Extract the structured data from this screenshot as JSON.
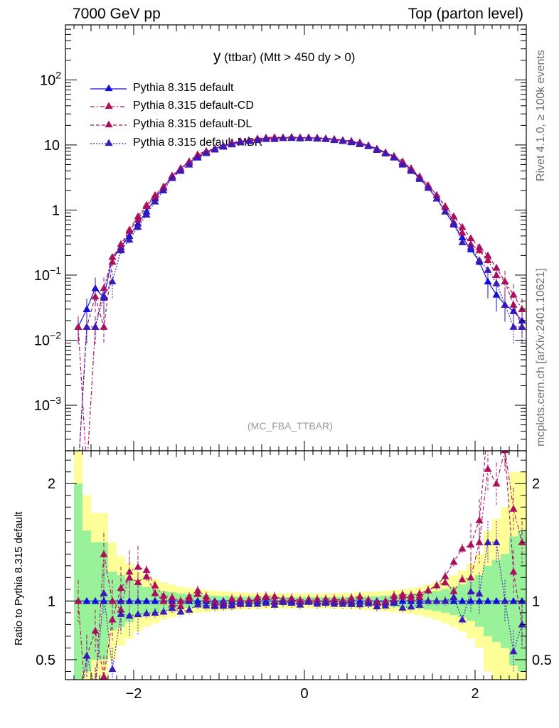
{
  "header": {
    "left": "7000 GeV pp",
    "right": "Top (parton level)"
  },
  "side": {
    "rivet": "Rivet 4.1.0, ≥ 100k events",
    "mcplots": "mcplots.cern.ch [arXiv:2401.10621]"
  },
  "colors": {
    "default": "#1010d8",
    "cd": "#b0105a",
    "dl": "#a8105f",
    "mbr": "#3b1bb8",
    "band_green": "#99f299",
    "band_yellow": "#ffff99"
  },
  "chart_data": {
    "type": "line",
    "title_main": "y",
    "title_rest": "(ttbar) (Mtt > 450 dy > 0)",
    "analysis_tag": "(MC_FBA_TTBAR)",
    "xlim": [
      -2.8,
      2.6
    ],
    "main": {
      "yscale": "log",
      "ylim": [
        0.0002,
        700
      ],
      "yticks": [
        {
          "value": 0.001,
          "label": "10",
          "exp": "−3"
        },
        {
          "value": 0.01,
          "label": "10",
          "exp": "−2"
        },
        {
          "value": 0.1,
          "label": "10",
          "exp": "−1"
        },
        {
          "value": 1,
          "label": "1",
          "exp": ""
        },
        {
          "value": 10,
          "label": "10",
          "exp": ""
        },
        {
          "value": 100,
          "label": "10",
          "exp": "2"
        }
      ]
    },
    "ratio": {
      "ylabel": "Ratio to Pythia 8.315 default",
      "ylim": [
        0.33,
        2.28
      ],
      "yticks": [
        {
          "value": 0.5,
          "label": "0.5"
        },
        {
          "value": 1,
          "label": "1"
        },
        {
          "value": 2,
          "label": "2"
        }
      ]
    },
    "xticks": [
      {
        "value": -2,
        "label": "−2"
      },
      {
        "value": 0,
        "label": "0"
      },
      {
        "value": 2,
        "label": "2"
      }
    ],
    "x": [
      -2.65,
      -2.55,
      -2.45,
      -2.35,
      -2.25,
      -2.15,
      -2.05,
      -1.95,
      -1.85,
      -1.75,
      -1.65,
      -1.55,
      -1.45,
      -1.35,
      -1.25,
      -1.15,
      -1.05,
      -0.95,
      -0.85,
      -0.75,
      -0.65,
      -0.55,
      -0.45,
      -0.35,
      -0.25,
      -0.15,
      -0.05,
      0.05,
      0.15,
      0.25,
      0.35,
      0.45,
      0.55,
      0.65,
      0.75,
      0.85,
      0.95,
      1.05,
      1.15,
      1.25,
      1.35,
      1.45,
      1.55,
      1.65,
      1.75,
      1.85,
      1.95,
      2.05,
      2.15,
      2.25,
      2.35,
      2.45,
      2.55
    ],
    "series": [
      {
        "name": "Pythia 8.315 default",
        "style": "solid",
        "values": [
          0.016,
          0.03,
          0.063,
          0.045,
          0.19,
          0.27,
          0.4,
          0.62,
          0.95,
          1.5,
          2.2,
          3.3,
          4.4,
          5.4,
          6.6,
          7.8,
          8.9,
          9.8,
          10.6,
          11.3,
          11.8,
          12.2,
          12.5,
          12.7,
          12.9,
          13.0,
          13.0,
          12.9,
          12.8,
          12.5,
          12.2,
          11.8,
          11.3,
          10.6,
          9.8,
          8.8,
          7.7,
          6.5,
          5.3,
          4.2,
          3.1,
          2.2,
          1.5,
          0.95,
          0.6,
          0.38,
          0.25,
          0.16,
          0.08,
          0.05,
          0.035,
          0.028,
          0.02
        ]
      },
      {
        "name": "Pythia 8.315 default-CD",
        "style": "dashdot",
        "values": [
          0.016,
          0.0001,
          0.016,
          0.063,
          0.19,
          0.25,
          0.5,
          0.8,
          1.2,
          1.7,
          2.3,
          3.4,
          4.4,
          5.6,
          7.2,
          8.1,
          8.8,
          9.6,
          10.8,
          11.5,
          11.5,
          12.6,
          13.0,
          13.2,
          13.1,
          13.3,
          13.1,
          13.1,
          13.0,
          12.7,
          12.4,
          11.9,
          11.6,
          11.0,
          9.9,
          8.7,
          7.7,
          6.8,
          5.6,
          4.4,
          3.3,
          2.4,
          1.7,
          1.1,
          0.65,
          0.45,
          0.3,
          0.24,
          0.17,
          0.1,
          0.08,
          0.05,
          0.03
        ]
      },
      {
        "name": "Pythia 8.315 default-DL",
        "style": "dashed",
        "values": [
          0.0001,
          0.016,
          0.047,
          0.016,
          0.16,
          0.3,
          0.48,
          0.72,
          1.15,
          1.6,
          2.2,
          3.2,
          4.2,
          5.5,
          7.0,
          7.9,
          8.6,
          9.5,
          10.3,
          11.0,
          11.9,
          12.3,
          12.9,
          12.6,
          12.8,
          13.2,
          12.9,
          13.0,
          12.7,
          12.4,
          12.1,
          11.7,
          11.1,
          10.3,
          9.6,
          8.4,
          7.6,
          6.6,
          5.5,
          4.3,
          3.2,
          2.4,
          1.7,
          1.15,
          0.8,
          0.55,
          0.37,
          0.27,
          0.2,
          0.13,
          0.08,
          0.035,
          0.016
        ]
      },
      {
        "name": "Pythia 8.315 default-MBR",
        "style": "dotted",
        "values": [
          0.0001,
          0.016,
          0.016,
          0.048,
          0.08,
          0.24,
          0.35,
          0.55,
          0.85,
          1.35,
          2.0,
          3.1,
          4.0,
          5.0,
          6.4,
          7.5,
          8.5,
          9.4,
          10.2,
          11.1,
          11.5,
          11.9,
          12.3,
          12.3,
          12.8,
          12.8,
          12.6,
          12.8,
          12.5,
          12.3,
          11.9,
          11.5,
          11.0,
          10.3,
          9.6,
          8.4,
          7.4,
          6.4,
          5.0,
          4.0,
          3.0,
          2.2,
          1.5,
          0.95,
          0.62,
          0.32,
          0.27,
          0.17,
          0.12,
          0.075,
          0.035,
          0.016,
          0.016
        ]
      }
    ],
    "band_inner_halfwidth": [
      1.0,
      0.6,
      0.5,
      0.5,
      0.25,
      0.22,
      0.18,
      0.14,
      0.12,
      0.1,
      0.085,
      0.075,
      0.065,
      0.06,
      0.055,
      0.05,
      0.045,
      0.042,
      0.04,
      0.038,
      0.036,
      0.035,
      0.034,
      0.033,
      0.033,
      0.033,
      0.033,
      0.033,
      0.033,
      0.033,
      0.034,
      0.035,
      0.036,
      0.038,
      0.04,
      0.042,
      0.045,
      0.05,
      0.055,
      0.06,
      0.065,
      0.075,
      0.085,
      0.1,
      0.12,
      0.14,
      0.17,
      0.22,
      0.3,
      0.35,
      0.4,
      0.55,
      0.6
    ],
    "band_outer_halfwidth": [
      1.3,
      0.9,
      0.75,
      0.75,
      0.5,
      0.38,
      0.32,
      0.26,
      0.22,
      0.19,
      0.16,
      0.14,
      0.12,
      0.11,
      0.1,
      0.095,
      0.088,
      0.082,
      0.078,
      0.074,
      0.07,
      0.068,
      0.066,
      0.065,
      0.065,
      0.065,
      0.065,
      0.065,
      0.065,
      0.065,
      0.066,
      0.068,
      0.07,
      0.074,
      0.078,
      0.082,
      0.088,
      0.095,
      0.1,
      0.11,
      0.12,
      0.14,
      0.16,
      0.19,
      0.22,
      0.26,
      0.32,
      0.4,
      0.6,
      0.7,
      0.8,
      1.1,
      1.1
    ]
  }
}
